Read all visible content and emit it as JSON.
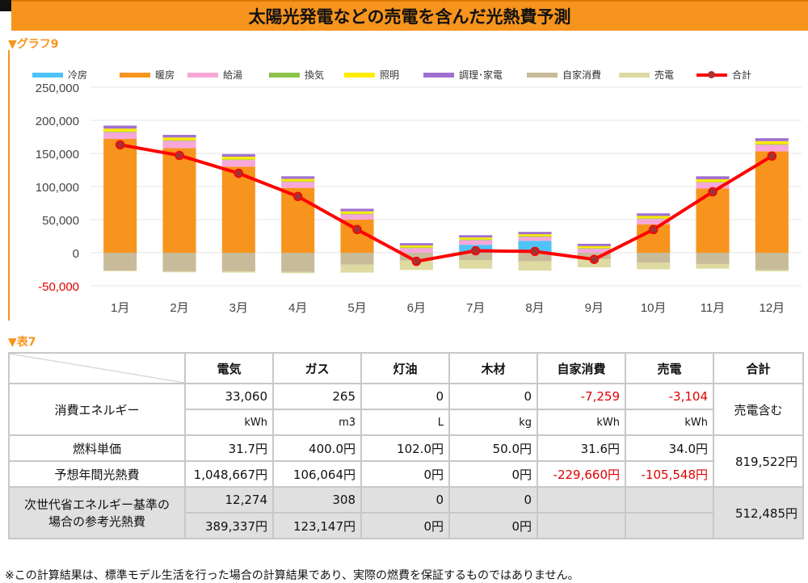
{
  "title": "太陽光発電などの売電を含んだ光熱費予測",
  "graph_label": "▼グラフ9",
  "table_label": "▼表7",
  "chart_data": {
    "type": "bar",
    "stacked": true,
    "categories": [
      "1月",
      "2月",
      "3月",
      "4月",
      "5月",
      "6月",
      "7月",
      "8月",
      "9月",
      "10月",
      "11月",
      "12月"
    ],
    "ylim": [
      -50000,
      250000
    ],
    "yticks": [
      -50000,
      0,
      50000,
      100000,
      150000,
      200000,
      250000
    ],
    "ytick_labels": [
      "-50,000",
      "0",
      "50,000",
      "100,000",
      "150,000",
      "200,000",
      "250,000"
    ],
    "grid": true,
    "legend_position": "top",
    "series": [
      {
        "name": "冷房",
        "color": "#4fc3f7",
        "values": [
          0,
          0,
          0,
          0,
          0,
          0,
          12000,
          18000,
          0,
          0,
          0,
          0
        ]
      },
      {
        "name": "暖房",
        "color": "#f7941d",
        "values": [
          172000,
          158000,
          130000,
          98000,
          50000,
          0,
          0,
          0,
          0,
          43000,
          97000,
          153000
        ]
      },
      {
        "name": "給湯",
        "color": "#f7a8d8",
        "values": [
          10000,
          11000,
          10000,
          9000,
          8000,
          7000,
          7000,
          6000,
          6000,
          8000,
          9000,
          10000
        ]
      },
      {
        "name": "換気",
        "color": "#8bc34a",
        "values": [
          1000,
          1000,
          1000,
          1000,
          1000,
          1000,
          1000,
          1000,
          1000,
          1000,
          1000,
          1000
        ]
      },
      {
        "name": "照明",
        "color": "#ffeb00",
        "values": [
          4500,
          4000,
          4000,
          3500,
          3500,
          3000,
          3000,
          3000,
          3000,
          3500,
          4000,
          4500
        ]
      },
      {
        "name": "調理･家電",
        "color": "#a070d0",
        "values": [
          4500,
          4000,
          4000,
          4000,
          4000,
          3500,
          3500,
          3500,
          3500,
          4000,
          4500,
          4500
        ]
      },
      {
        "name": "自家消費",
        "color": "#c8bb9a",
        "values": [
          -27000,
          -28000,
          -28000,
          -29000,
          -18000,
          -12000,
          -11000,
          -13000,
          -10000,
          -15000,
          -17000,
          -26000
        ]
      },
      {
        "name": "売電",
        "color": "#dedaa2",
        "values": [
          -1000,
          -1500,
          -2000,
          -2000,
          -12000,
          -14000,
          -13000,
          -14000,
          -12000,
          -10000,
          -7000,
          -2000
        ]
      }
    ],
    "line": {
      "name": "合計",
      "color": "#ff0000",
      "marker_color": "#a33333",
      "values": [
        163000,
        147000,
        120000,
        85000,
        35000,
        -13000,
        3000,
        2000,
        -10000,
        35000,
        92000,
        146000
      ]
    }
  },
  "table": {
    "headers": [
      "電気",
      "ガス",
      "灯油",
      "木材",
      "自家消費",
      "売電",
      "合計"
    ],
    "row_energy": {
      "label": "消費エネルギー",
      "values": [
        "33,060",
        "265",
        "0",
        "0",
        "-7,259",
        "-3,104"
      ],
      "units": [
        "kWh",
        "m3",
        "L",
        "kg",
        "kWh",
        "kWh"
      ],
      "total": "売電含む"
    },
    "row_unit_price": {
      "label": "燃料単価",
      "values": [
        "31.7円",
        "400.0円",
        "102.0円",
        "50.0円",
        "31.6円",
        "34.0円"
      ]
    },
    "row_annual_cost": {
      "label": "予想年間光熱費",
      "values": [
        "1,048,667円",
        "106,064円",
        "0円",
        "0円",
        "-229,660円",
        "-105,548円"
      ]
    },
    "cost_total": "819,522円",
    "row_next_gen": {
      "label_line1": "次世代省エネルギー基準の",
      "label_line2": "場合の参考光熱費",
      "values_top": [
        "12,274",
        "308",
        "0",
        "0"
      ],
      "values_bottom": [
        "389,337円",
        "123,147円",
        "0円",
        "0円"
      ],
      "total": "512,485円"
    }
  },
  "footnote": "※この計算結果は、標準モデル生活を行った場合の計算結果であり、実際の燃費を保証するものではありません。"
}
